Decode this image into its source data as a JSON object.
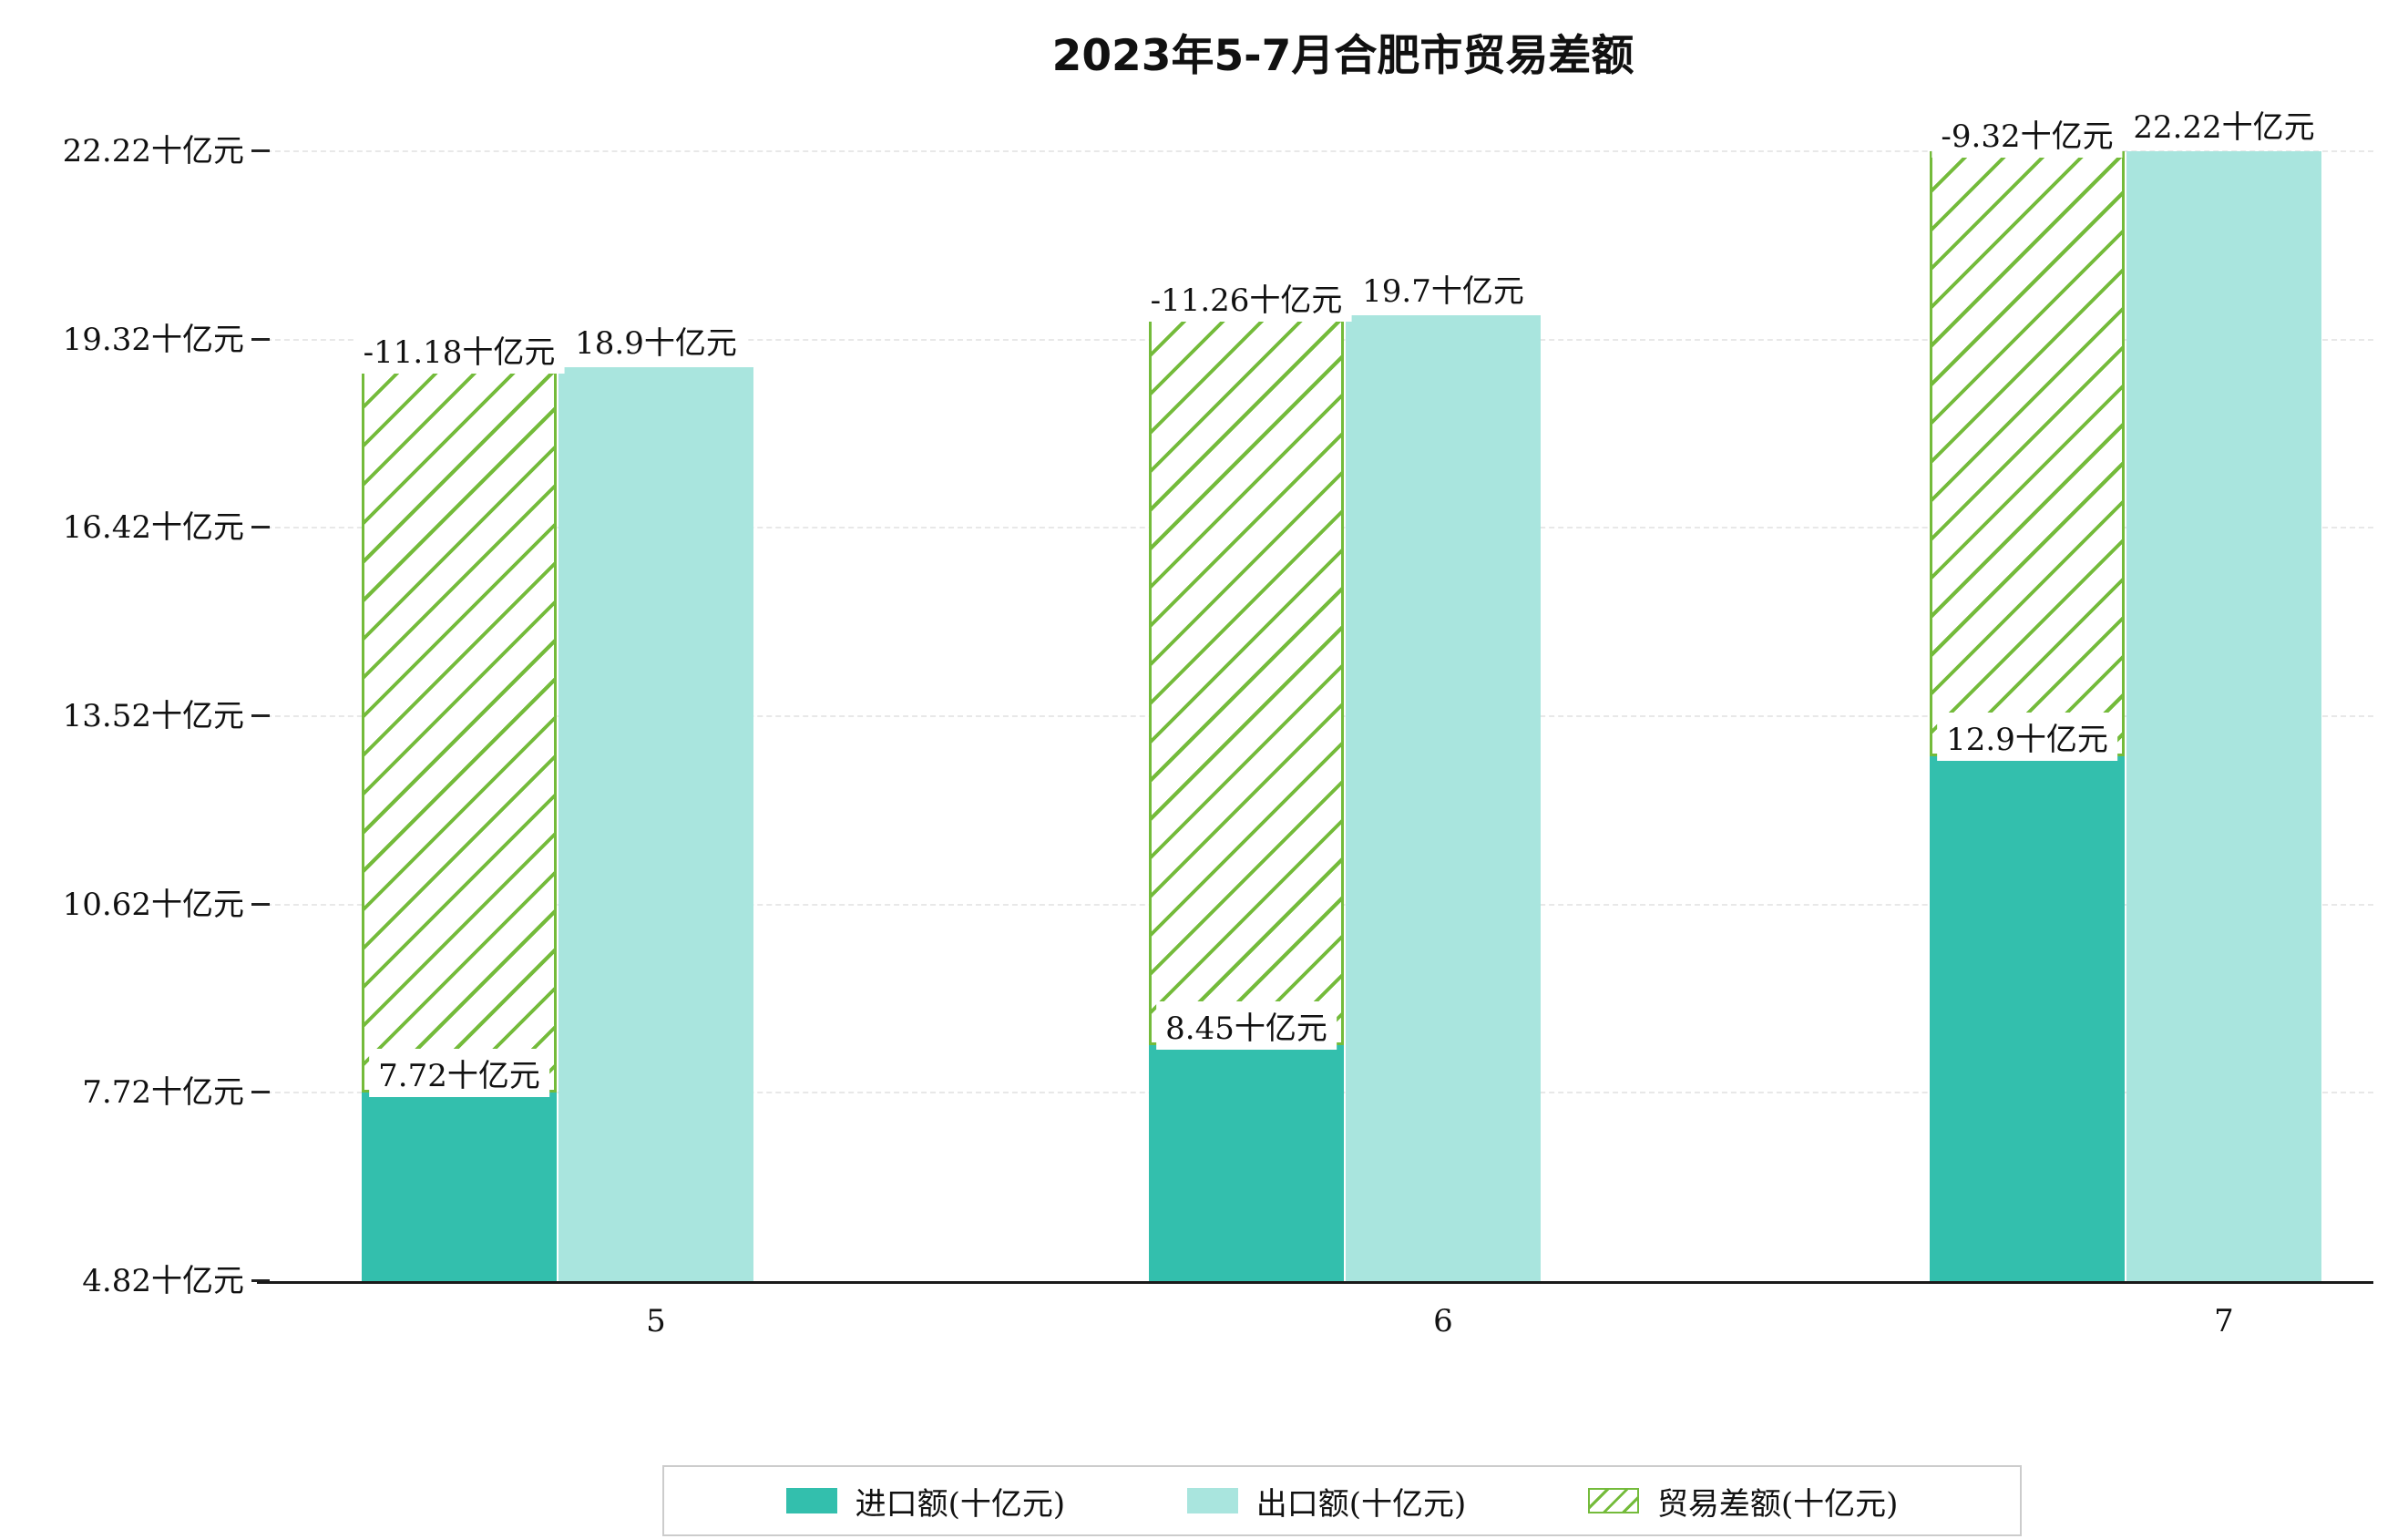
{
  "title": "2023年5-7月合肥市贸易差额",
  "chart_data": {
    "type": "bar",
    "title": "2023年5-7月合肥市贸易差额",
    "categories": [
      "5",
      "6",
      "7"
    ],
    "series": [
      {
        "name": "进口额(十亿元)",
        "role": "import",
        "values": [
          7.72,
          8.45,
          12.9
        ],
        "labels": [
          "7.72十亿元",
          "8.45十亿元",
          "12.9十亿元"
        ],
        "color": "#33bfad"
      },
      {
        "name": "出口额(十亿元)",
        "role": "export",
        "values": [
          18.9,
          19.7,
          22.22
        ],
        "labels": [
          "18.9十亿元",
          "19.7十亿元",
          "22.22十亿元"
        ],
        "color": "#a9e5de"
      },
      {
        "name": "贸易差额(十亿元)",
        "role": "trade-balance",
        "values": [
          -11.18,
          -11.26,
          -9.32
        ],
        "labels": [
          "-11.18十亿元",
          "-11.26十亿元",
          "-9.32十亿元"
        ],
        "color": "#74bb3b",
        "style": "hatched-stacked-on-import"
      }
    ],
    "xlabel": "",
    "ylabel": "",
    "ylim": [
      4.82,
      22.22
    ],
    "yticks": [
      4.82,
      7.72,
      10.62,
      13.52,
      16.42,
      19.32,
      22.22
    ],
    "ytick_labels": [
      "4.82十亿元",
      "7.72十亿元",
      "10.62十亿元",
      "13.52十亿元",
      "16.42十亿元",
      "19.32十亿元",
      "22.22十亿元"
    ],
    "grid": "horizontal-dashed",
    "legend_position": "bottom-center"
  },
  "colors": {
    "import": "#33bfad",
    "export": "#a9e5de",
    "balance": "#74bb3b",
    "axis": "#1a1a1a",
    "grid": "#e8e8e8",
    "background": "#ffffff"
  }
}
